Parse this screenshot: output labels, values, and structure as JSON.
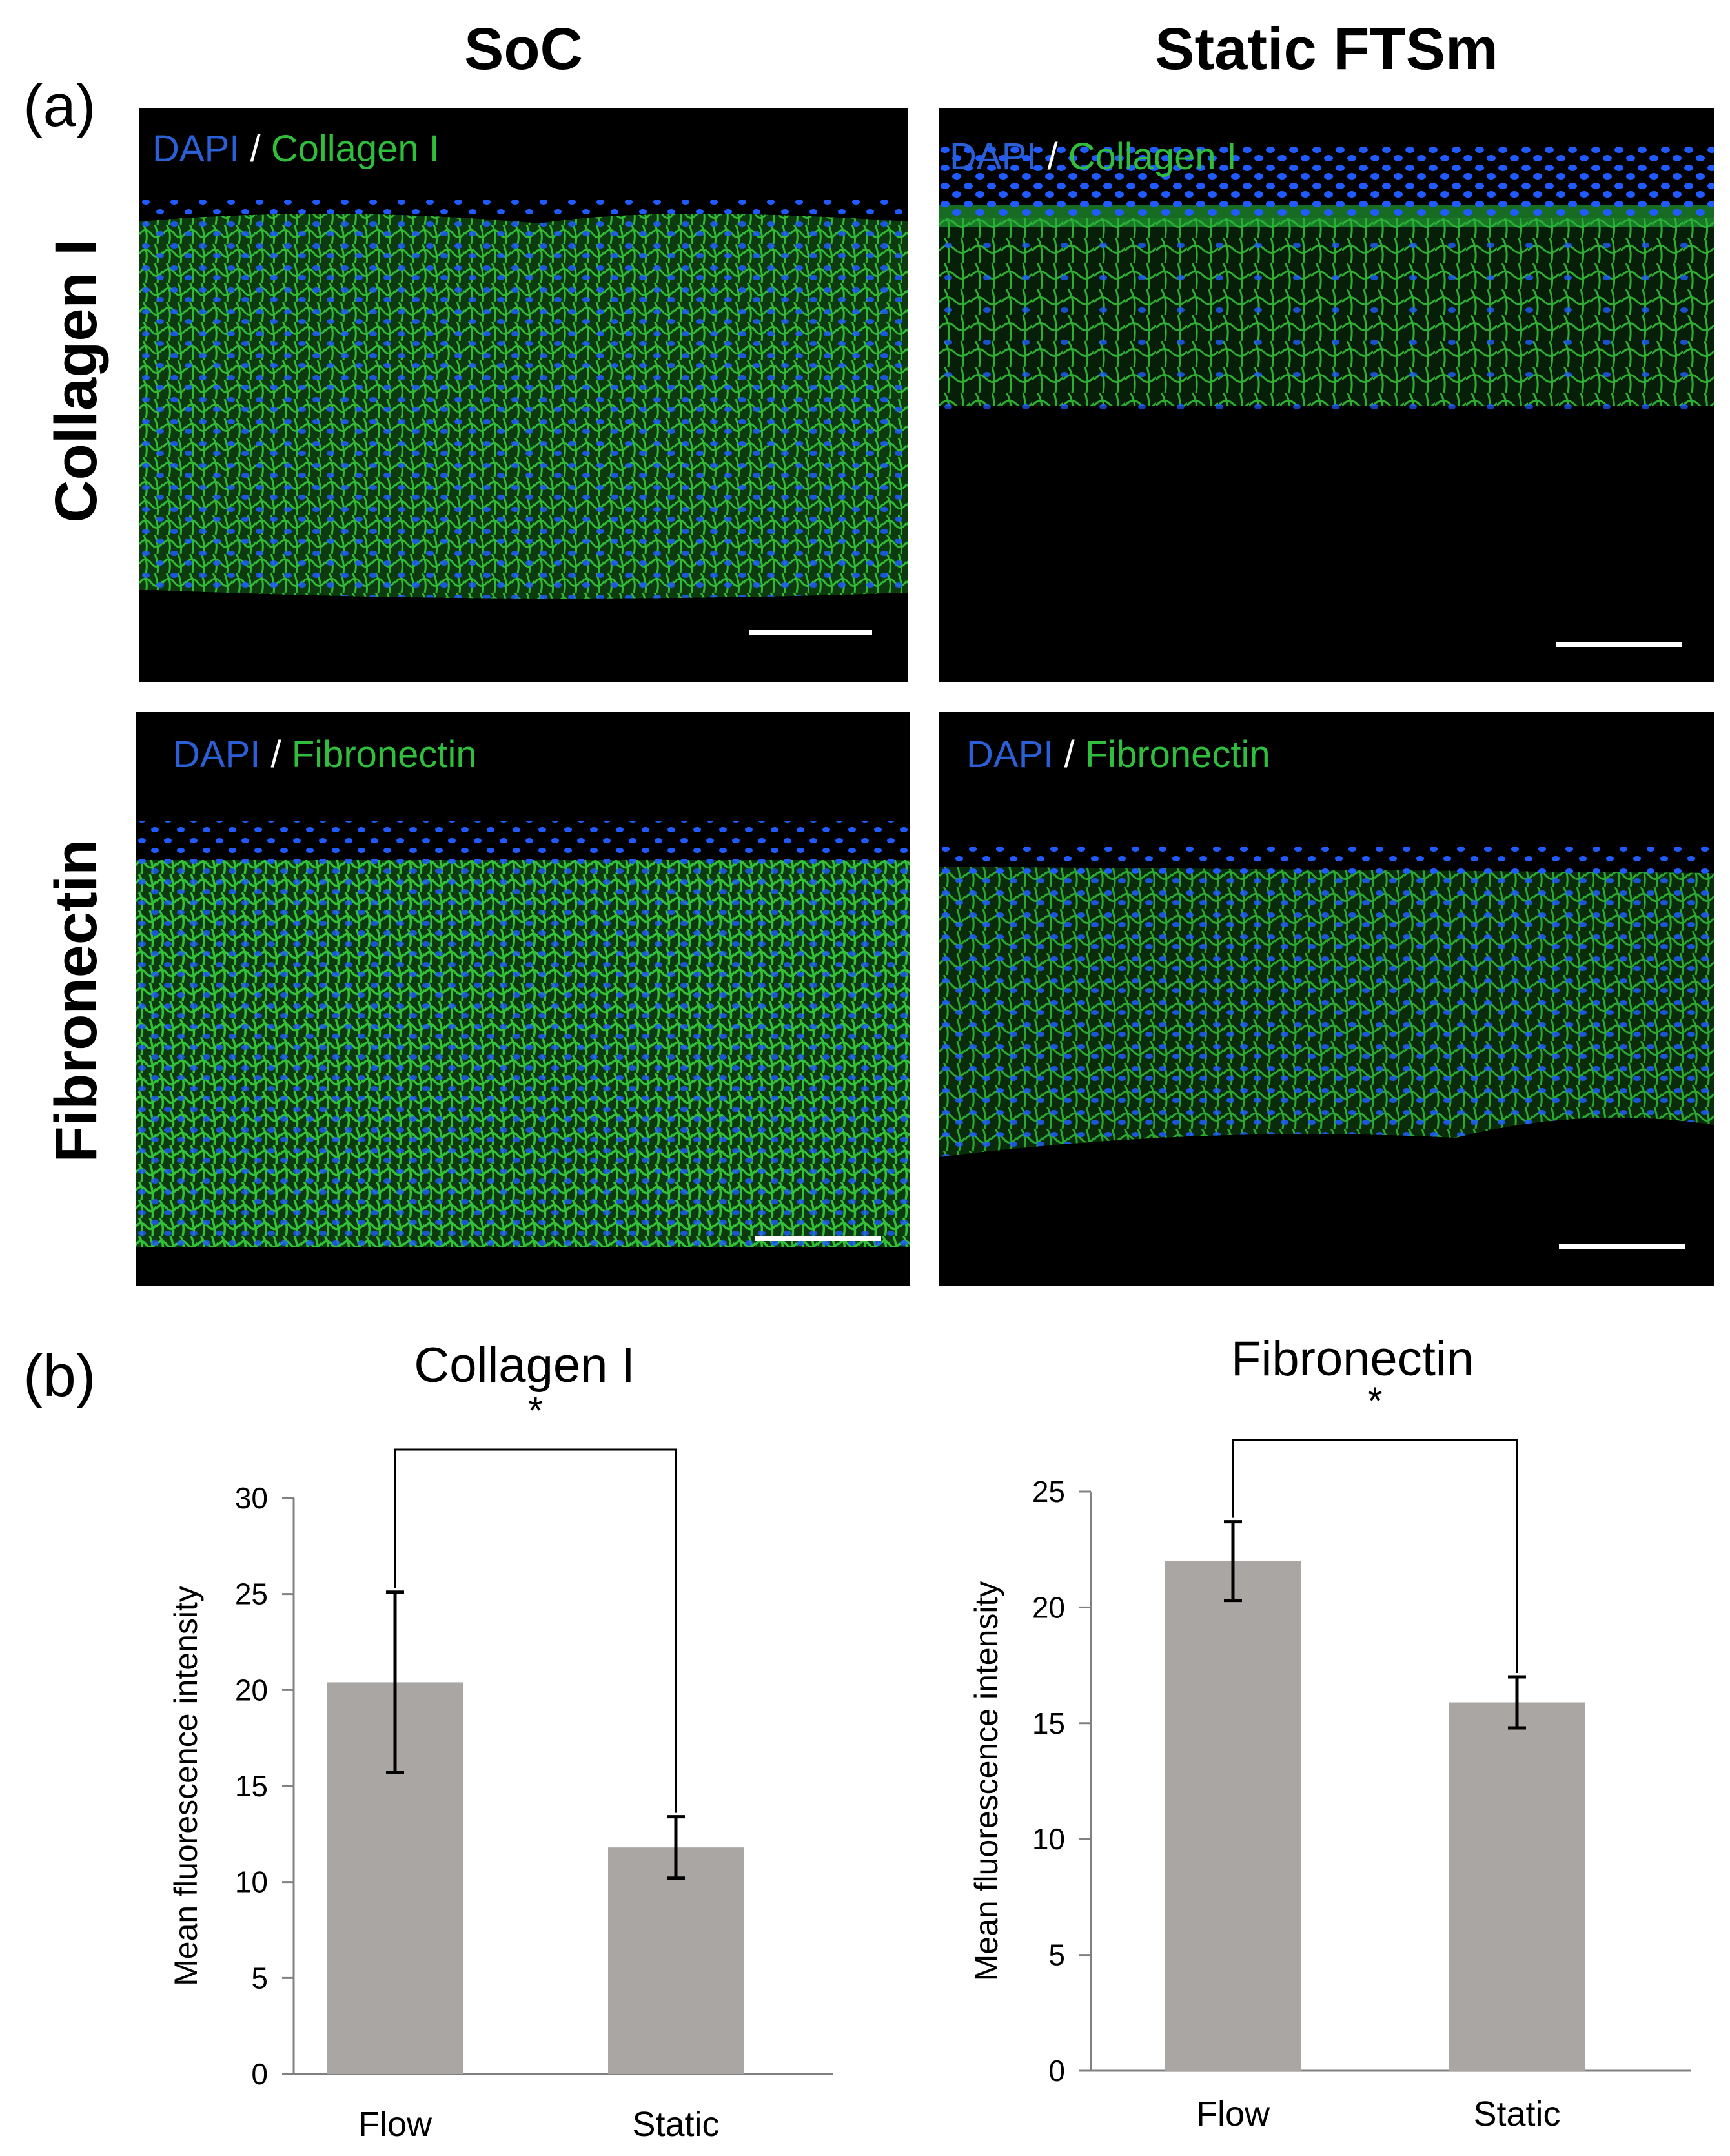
{
  "panel_a_label": "(a)",
  "panel_b_label": "(b)",
  "columns": [
    "SoC",
    "Static FTSm"
  ],
  "rows": [
    "Collagen I",
    "Fibronectin"
  ],
  "stain_labels": {
    "dapi": "DAPI",
    "separator": "/",
    "collagen": "Collagen I",
    "fibronectin": "Fibronectin"
  },
  "colors": {
    "dapi_blue": "#2b5fd6",
    "marker_green": "#2fbf3c",
    "bar_gray": "#a9a6a4",
    "micro_background": "#000000"
  },
  "chart_data": [
    {
      "type": "bar",
      "title": "Collagen I",
      "categories": [
        "Flow",
        "Static"
      ],
      "values": [
        20.4,
        11.8
      ],
      "errors": [
        4.7,
        1.6
      ],
      "ylabel": "Mean fluorescence intensity",
      "ylim": [
        0,
        30
      ],
      "yticks": [
        0,
        5,
        10,
        15,
        20,
        25,
        30
      ],
      "significance": "*",
      "grid": false
    },
    {
      "type": "bar",
      "title": "Fibronectin",
      "categories": [
        "Flow",
        "Static"
      ],
      "values": [
        22.0,
        15.9
      ],
      "errors": [
        1.7,
        1.1
      ],
      "ylabel": "Mean fluorescence intensity",
      "ylim": [
        0,
        25
      ],
      "yticks": [
        0,
        5,
        10,
        15,
        20,
        25
      ],
      "significance": "*",
      "grid": false
    }
  ]
}
